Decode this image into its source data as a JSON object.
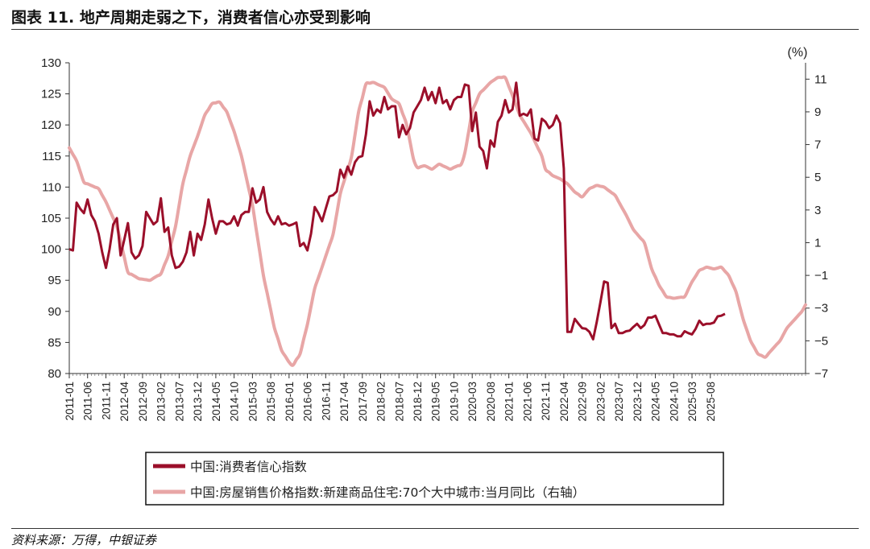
{
  "title": "图表 11. 地产周期走弱之下，消费者信心亦受到影响",
  "source": "资料来源：万得，中银证券",
  "colors": {
    "series1": "#9b0f2a",
    "series2": "#e8a6a6",
    "axis": "#333333"
  },
  "chart_data": {
    "type": "line",
    "x_tick_labels": [
      "2011-01",
      "2011-06",
      "2011-11",
      "2012-04",
      "2012-09",
      "2013-02",
      "2013-07",
      "2013-12",
      "2014-05",
      "2014-10",
      "2015-03",
      "2015-08",
      "2016-01",
      "2016-06",
      "2016-11",
      "2017-04",
      "2017-09",
      "2018-02",
      "2018-07",
      "2018-12",
      "2019-05",
      "2019-10",
      "2020-03",
      "2020-08",
      "2021-01",
      "2021-06",
      "2021-11",
      "2022-04",
      "2022-09",
      "2023-02",
      "2023-07",
      "2023-12",
      "2024-05",
      "2024-10",
      "2025-03",
      "2025-08"
    ],
    "left_axis": {
      "ticks": [
        80,
        85,
        90,
        95,
        100,
        105,
        110,
        115,
        120,
        125,
        130
      ],
      "range": [
        80,
        130
      ]
    },
    "right_axis": {
      "unit": "(%)",
      "ticks": [
        11,
        9,
        7,
        5,
        3,
        1,
        -1,
        -3,
        -5,
        -7
      ],
      "range": [
        -7,
        12
      ]
    },
    "series": [
      {
        "name": "中国:消费者信心指数",
        "axis": "left",
        "anchors": [
          [
            0,
            100
          ],
          [
            1,
            99.8
          ],
          [
            2,
            107.5
          ],
          [
            3,
            106.5
          ],
          [
            4,
            105.8
          ],
          [
            5,
            108
          ],
          [
            6,
            105.5
          ],
          [
            7,
            104.5
          ],
          [
            8,
            102.5
          ],
          [
            9,
            99.5
          ],
          [
            10,
            97
          ],
          [
            11,
            100
          ],
          [
            12,
            104
          ],
          [
            13,
            105
          ],
          [
            14,
            99
          ],
          [
            15,
            101.5
          ],
          [
            16,
            104.2
          ],
          [
            17,
            99.5
          ],
          [
            18,
            98.5
          ],
          [
            19,
            99
          ],
          [
            20,
            100.5
          ],
          [
            21,
            106
          ],
          [
            22,
            105
          ],
          [
            23,
            104
          ],
          [
            24,
            104.5
          ],
          [
            25,
            108.2
          ],
          [
            26,
            102.8
          ],
          [
            27,
            103.5
          ],
          [
            28,
            99
          ],
          [
            29,
            97
          ],
          [
            30,
            97.2
          ],
          [
            31,
            98
          ],
          [
            32,
            99.5
          ],
          [
            33,
            102.8
          ],
          [
            34,
            99
          ],
          [
            35,
            102.5
          ],
          [
            36,
            101.5
          ],
          [
            37,
            104
          ],
          [
            38,
            108
          ],
          [
            39,
            105
          ],
          [
            40,
            102.5
          ],
          [
            41,
            104.5
          ],
          [
            42,
            104.5
          ],
          [
            43,
            104
          ],
          [
            44,
            104.2
          ],
          [
            45,
            105.3
          ],
          [
            46,
            103.8
          ],
          [
            47,
            105.5
          ],
          [
            48,
            106
          ],
          [
            49,
            106
          ],
          [
            50,
            109.8
          ],
          [
            51,
            107.5
          ],
          [
            52,
            108
          ],
          [
            53,
            110
          ],
          [
            54,
            106
          ],
          [
            55,
            104.8
          ],
          [
            56,
            104
          ],
          [
            57,
            105.3
          ],
          [
            58,
            104
          ],
          [
            59,
            104.2
          ],
          [
            60,
            103.8
          ],
          [
            61,
            104
          ],
          [
            62,
            104.3
          ],
          [
            63,
            100.5
          ],
          [
            64,
            101
          ],
          [
            65,
            99.8
          ],
          [
            66,
            102.5
          ],
          [
            67,
            106.8
          ],
          [
            68,
            105.8
          ],
          [
            69,
            104.5
          ],
          [
            70,
            106.5
          ],
          [
            71,
            108.5
          ],
          [
            72,
            108.7
          ],
          [
            73,
            109.3
          ],
          [
            74,
            112.8
          ],
          [
            75,
            111.5
          ],
          [
            76,
            113.3
          ],
          [
            77,
            112
          ],
          [
            78,
            114
          ],
          [
            79,
            114.8
          ],
          [
            80,
            115
          ],
          [
            81,
            118.5
          ],
          [
            82,
            123.8
          ],
          [
            83,
            121.5
          ],
          [
            84,
            122.5
          ],
          [
            85,
            122
          ],
          [
            86,
            124.5
          ],
          [
            87,
            122.5
          ],
          [
            88,
            123
          ],
          [
            89,
            123
          ],
          [
            90,
            118
          ],
          [
            91,
            120
          ],
          [
            92,
            118.5
          ],
          [
            93,
            119.5
          ],
          [
            94,
            122
          ],
          [
            95,
            123
          ],
          [
            96,
            124
          ],
          [
            97,
            126
          ],
          [
            98,
            124
          ],
          [
            99,
            125.3
          ],
          [
            100,
            123.5
          ],
          [
            101,
            126
          ],
          [
            102,
            123.5
          ],
          [
            103,
            124
          ],
          [
            104,
            122.5
          ],
          [
            105,
            124
          ],
          [
            106,
            124.5
          ],
          [
            107,
            124.5
          ],
          [
            108,
            126.5
          ],
          [
            109,
            126.3
          ],
          [
            110,
            119
          ],
          [
            111,
            122
          ],
          [
            112,
            116.5
          ],
          [
            113,
            115.8
          ],
          [
            114,
            113
          ],
          [
            115,
            117.5
          ],
          [
            116,
            116.5
          ],
          [
            117,
            120.5
          ],
          [
            118,
            121.5
          ],
          [
            119,
            124
          ],
          [
            120,
            122
          ],
          [
            121,
            122.5
          ],
          [
            122,
            126.8
          ],
          [
            123,
            121.5
          ],
          [
            124,
            121.8
          ],
          [
            125,
            121.5
          ],
          [
            126,
            122.5
          ],
          [
            127,
            117.8
          ],
          [
            128,
            117.5
          ],
          [
            129,
            121
          ],
          [
            130,
            120.5
          ],
          [
            131,
            119.5
          ],
          [
            132,
            120
          ],
          [
            133,
            121.5
          ],
          [
            134,
            120.3
          ],
          [
            135,
            113
          ],
          [
            136,
            86.7
          ],
          [
            137,
            86.7
          ],
          [
            138,
            88.8
          ],
          [
            139,
            88
          ],
          [
            140,
            87.3
          ],
          [
            141,
            87.2
          ],
          [
            142,
            86.7
          ],
          [
            143,
            85.5
          ],
          [
            144,
            88.3
          ],
          [
            145,
            91.5
          ],
          [
            146,
            94.8
          ],
          [
            147,
            94.6
          ],
          [
            148,
            87.3
          ],
          [
            149,
            88
          ],
          [
            150,
            86.5
          ],
          [
            151,
            86.5
          ],
          [
            152,
            86.8
          ],
          [
            153,
            86.9
          ],
          [
            154,
            87.5
          ],
          [
            155,
            88
          ],
          [
            156,
            87.3
          ],
          [
            157,
            87.8
          ],
          [
            158,
            89
          ],
          [
            159,
            89
          ],
          [
            160,
            89.3
          ],
          [
            161,
            87.9
          ],
          [
            162,
            86.5
          ],
          [
            163,
            86.5
          ],
          [
            164,
            86.3
          ],
          [
            165,
            86.3
          ],
          [
            166,
            86
          ],
          [
            167,
            86
          ],
          [
            168,
            86.8
          ],
          [
            169,
            86.5
          ],
          [
            170,
            86.3
          ],
          [
            171,
            87.2
          ],
          [
            172,
            88.5
          ],
          [
            173,
            87.8
          ],
          [
            174,
            88
          ],
          [
            175,
            88
          ],
          [
            176,
            88.2
          ],
          [
            177,
            89.2
          ],
          [
            178,
            89.3
          ],
          [
            179,
            89.6
          ]
        ]
      },
      {
        "name": "中国:房屋销售价格指数:新建商品住宅:70个大中城市:当月同比（右轴）",
        "axis": "right",
        "anchors": [
          [
            0,
            6.8
          ],
          [
            2,
            6
          ],
          [
            4,
            4.7
          ],
          [
            6,
            4.5
          ],
          [
            8,
            4.3
          ],
          [
            10,
            3.5
          ],
          [
            13,
            2
          ],
          [
            16,
            -0.8
          ],
          [
            19,
            -1.2
          ],
          [
            22,
            -1.3
          ],
          [
            25,
            -0.9
          ],
          [
            27,
            0.2
          ],
          [
            29,
            2
          ],
          [
            31,
            4.6
          ],
          [
            33,
            6.3
          ],
          [
            35,
            7.5
          ],
          [
            37,
            8.8
          ],
          [
            39,
            9.5
          ],
          [
            41,
            9.6
          ],
          [
            43,
            9
          ],
          [
            45,
            7.8
          ],
          [
            47,
            6.3
          ],
          [
            50,
            3.3
          ],
          [
            53,
            -1
          ],
          [
            56,
            -4.2
          ],
          [
            58,
            -5.6
          ],
          [
            60,
            -6.3
          ],
          [
            61,
            -6.5
          ],
          [
            63,
            -5.8
          ],
          [
            65,
            -4
          ],
          [
            67,
            -1.8
          ],
          [
            69,
            -0.5
          ],
          [
            72,
            1.5
          ],
          [
            74,
            4
          ],
          [
            77,
            6.2
          ],
          [
            79,
            9
          ],
          [
            81,
            10.7
          ],
          [
            83,
            10.8
          ],
          [
            86,
            10.5
          ],
          [
            88,
            9.8
          ],
          [
            90,
            9.5
          ],
          [
            92,
            8.3
          ],
          [
            94,
            6.1
          ],
          [
            95,
            5.6
          ],
          [
            97,
            5.7
          ],
          [
            99,
            5.5
          ],
          [
            101,
            5.8
          ],
          [
            104,
            5.5
          ],
          [
            107,
            5.8
          ],
          [
            108,
            6.5
          ],
          [
            110,
            9
          ],
          [
            112,
            10.1
          ],
          [
            115,
            10.8
          ],
          [
            117,
            11.1
          ],
          [
            119,
            11.1
          ],
          [
            121,
            10
          ],
          [
            123,
            8.8
          ],
          [
            126,
            7.7
          ],
          [
            129,
            6.3
          ],
          [
            130,
            5.5
          ],
          [
            132,
            5.1
          ],
          [
            134,
            4.9
          ],
          [
            136,
            4.6
          ],
          [
            138,
            4.1
          ],
          [
            140,
            3.8
          ],
          [
            142,
            4.3
          ],
          [
            144,
            4.5
          ],
          [
            146,
            4.4
          ],
          [
            149,
            3.9
          ],
          [
            152,
            2.7
          ],
          [
            154,
            1.8
          ],
          [
            157,
            1
          ],
          [
            159,
            -0.6
          ],
          [
            161,
            -1.6
          ],
          [
            163,
            -2.3
          ],
          [
            165,
            -2.4
          ],
          [
            168,
            -2.3
          ],
          [
            170,
            -1.4
          ],
          [
            172,
            -0.7
          ],
          [
            174,
            -0.5
          ],
          [
            176,
            -0.6
          ],
          [
            178,
            -0.5
          ],
          [
            180,
            -1
          ],
          [
            182,
            -2
          ],
          [
            184,
            -3.7
          ],
          [
            186,
            -5
          ],
          [
            188,
            -5.8
          ],
          [
            190,
            -6
          ],
          [
            192,
            -5.5
          ],
          [
            194,
            -5
          ],
          [
            196,
            -4.2
          ],
          [
            198,
            -3.7
          ],
          [
            200,
            -3.2
          ],
          [
            201,
            -2.8
          ]
        ]
      }
    ]
  }
}
